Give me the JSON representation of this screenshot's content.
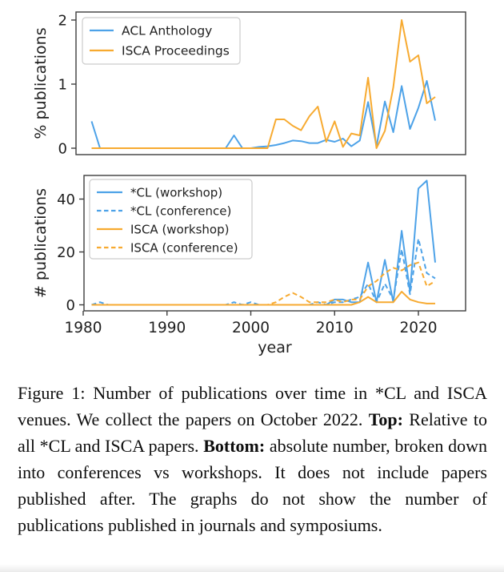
{
  "colors": {
    "acl_blue": "#4da2e8",
    "isca_orange": "#f7aa30",
    "axis": "#3d3d3d",
    "legend_border": "#cccccc",
    "text": "#1f1f1f"
  },
  "chart_data": [
    {
      "type": "line",
      "title": "",
      "xlabel": "",
      "ylabel": "% publications",
      "grid": false,
      "legend_position": "upper-left",
      "xticks": [
        1980,
        1990,
        2000,
        2010,
        2020
      ],
      "yticks": [
        0,
        1,
        2
      ],
      "show_x_tick_labels": false,
      "xlim": [
        1979,
        2025.6
      ],
      "ylim": [
        -0.1,
        2.125
      ],
      "x": [
        1981,
        1982,
        1983,
        1984,
        1985,
        1986,
        1987,
        1988,
        1989,
        1990,
        1991,
        1992,
        1993,
        1994,
        1995,
        1996,
        1997,
        1998,
        1999,
        2000,
        2001,
        2002,
        2003,
        2004,
        2005,
        2006,
        2007,
        2008,
        2009,
        2010,
        2011,
        2012,
        2013,
        2014,
        2015,
        2016,
        2017,
        2018,
        2019,
        2020,
        2021,
        2022
      ],
      "series": [
        {
          "name": "ACL Anthology",
          "color": "#4da2e8",
          "line_style": "solid",
          "values": [
            0.42,
            0,
            0,
            0,
            0,
            0,
            0,
            0,
            0,
            0,
            0,
            0,
            0,
            0,
            0,
            0,
            0,
            0.2,
            0,
            0,
            0.02,
            0.03,
            0.05,
            0.08,
            0.12,
            0.11,
            0.08,
            0.08,
            0.13,
            0.1,
            0.15,
            0.03,
            0.12,
            0.72,
            0.03,
            0.73,
            0.25,
            0.97,
            0.3,
            0.63,
            1.05,
            0.43
          ]
        },
        {
          "name": "ISCA Proceedings",
          "color": "#f7aa30",
          "line_style": "solid",
          "values": [
            0,
            0,
            0,
            0,
            0,
            0,
            0,
            0,
            0,
            0,
            0,
            0,
            0,
            0,
            0,
            0,
            0,
            0,
            0,
            0,
            0,
            0,
            0.45,
            0.45,
            0.35,
            0.28,
            0.5,
            0.65,
            0.1,
            0.42,
            0.02,
            0.23,
            0.2,
            1.1,
            0,
            0.27,
            0.95,
            2.0,
            1.35,
            1.45,
            0.7,
            0.8
          ]
        }
      ]
    },
    {
      "type": "line",
      "title": "",
      "xlabel": "year",
      "ylabel": "# publications",
      "grid": false,
      "legend_position": "upper-left",
      "xticks": [
        1980,
        1990,
        2000,
        2010,
        2020
      ],
      "yticks": [
        0,
        20,
        40
      ],
      "show_x_tick_labels": true,
      "xlim": [
        1979,
        2025.6
      ],
      "ylim": [
        -2.3,
        48.9
      ],
      "x": [
        1981,
        1982,
        1983,
        1984,
        1985,
        1986,
        1987,
        1988,
        1989,
        1990,
        1991,
        1992,
        1993,
        1994,
        1995,
        1996,
        1997,
        1998,
        1999,
        2000,
        2001,
        2002,
        2003,
        2004,
        2005,
        2006,
        2007,
        2008,
        2009,
        2010,
        2011,
        2012,
        2013,
        2014,
        2015,
        2016,
        2017,
        2018,
        2019,
        2020,
        2021,
        2022
      ],
      "series": [
        {
          "name": "*CL (workshop)",
          "color": "#4da2e8",
          "line_style": "solid",
          "values": [
            0,
            0,
            0,
            0,
            0,
            0,
            0,
            0,
            0,
            0,
            0,
            0,
            0,
            0,
            0,
            0,
            0,
            0,
            0,
            0,
            0,
            0,
            0,
            0,
            0,
            0,
            0,
            0,
            0,
            2,
            2,
            1,
            1,
            16,
            1,
            17,
            1,
            28,
            5,
            44,
            47,
            16
          ]
        },
        {
          "name": "*CL (conference)",
          "color": "#4da2e8",
          "line_style": "dashed",
          "values": [
            0,
            1,
            0,
            0,
            0,
            0,
            0,
            0,
            0,
            0,
            0,
            0,
            0,
            0,
            0,
            0,
            0,
            1,
            0,
            1,
            0,
            0,
            0,
            0,
            0,
            0,
            0,
            1,
            0,
            1,
            1,
            2,
            3,
            8,
            1,
            8,
            2,
            21,
            4,
            25,
            12,
            10
          ]
        },
        {
          "name": "ISCA (workshop)",
          "color": "#f7aa30",
          "line_style": "solid",
          "values": [
            0,
            0,
            0,
            0,
            0,
            0,
            0,
            0,
            0,
            0,
            0,
            0,
            0,
            0,
            0,
            0,
            0,
            0,
            0,
            0,
            0,
            0,
            0,
            0,
            0,
            0,
            0,
            0,
            0,
            0,
            0,
            0,
            1,
            3,
            1,
            1,
            1,
            5,
            2,
            1,
            0.5,
            0.5
          ]
        },
        {
          "name": "ISCA (conference)",
          "color": "#f7aa30",
          "line_style": "dashed",
          "values": [
            0,
            0,
            0,
            0,
            0,
            0,
            0,
            0,
            0,
            0,
            0,
            0,
            0,
            0,
            0,
            0,
            0,
            0,
            0,
            0,
            0,
            0,
            1,
            3,
            4.5,
            3,
            1,
            1,
            1,
            2,
            1,
            2,
            2,
            7,
            9,
            12,
            14,
            13,
            15,
            16,
            7,
            9
          ]
        }
      ]
    }
  ],
  "caption": {
    "label": "Figure 1:",
    "segments": [
      {
        "text": "Figure 1:  Number of publications over time in *CL and ISCA venues.  We collect the papers on October 2022. ",
        "bold": false
      },
      {
        "text": "Top:",
        "bold": true
      },
      {
        "text": " Relative to all *CL and ISCA papers. ",
        "bold": false
      },
      {
        "text": "Bottom:",
        "bold": true
      },
      {
        "text": " absolute number, broken down into conferences vs workshops. It does not include papers published after. The graphs do not show the number of publications published in journals and symposiums.",
        "bold": false
      }
    ]
  }
}
